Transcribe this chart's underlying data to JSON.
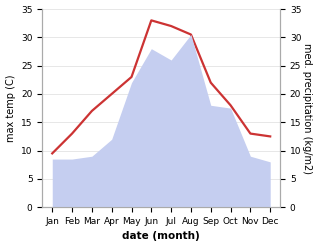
{
  "months": [
    "Jan",
    "Feb",
    "Mar",
    "Apr",
    "May",
    "Jun",
    "Jul",
    "Aug",
    "Sep",
    "Oct",
    "Nov",
    "Dec"
  ],
  "month_indices": [
    1,
    2,
    3,
    4,
    5,
    6,
    7,
    8,
    9,
    10,
    11,
    12
  ],
  "temperature": [
    9.5,
    13.0,
    17.0,
    20.0,
    23.0,
    33.0,
    32.0,
    30.5,
    22.0,
    18.0,
    13.0,
    12.5
  ],
  "precipitation": [
    8.5,
    8.5,
    9.0,
    12.0,
    22.0,
    28.0,
    26.0,
    30.5,
    18.0,
    17.5,
    9.0,
    8.0
  ],
  "temp_color": "#cc3333",
  "precip_color": "#c5cef0",
  "ylim": [
    0,
    35
  ],
  "yticks": [
    0,
    5,
    10,
    15,
    20,
    25,
    30,
    35
  ],
  "ylabel_left": "max temp (C)",
  "ylabel_right": "med. precipitation (kg/m2)",
  "xlabel": "date (month)",
  "bg_color": "#ffffff",
  "spine_color": "#aaaaaa",
  "temp_linewidth": 1.6,
  "xlabel_fontsize": 7.5,
  "ylabel_fontsize": 7.0,
  "tick_fontsize": 6.5
}
